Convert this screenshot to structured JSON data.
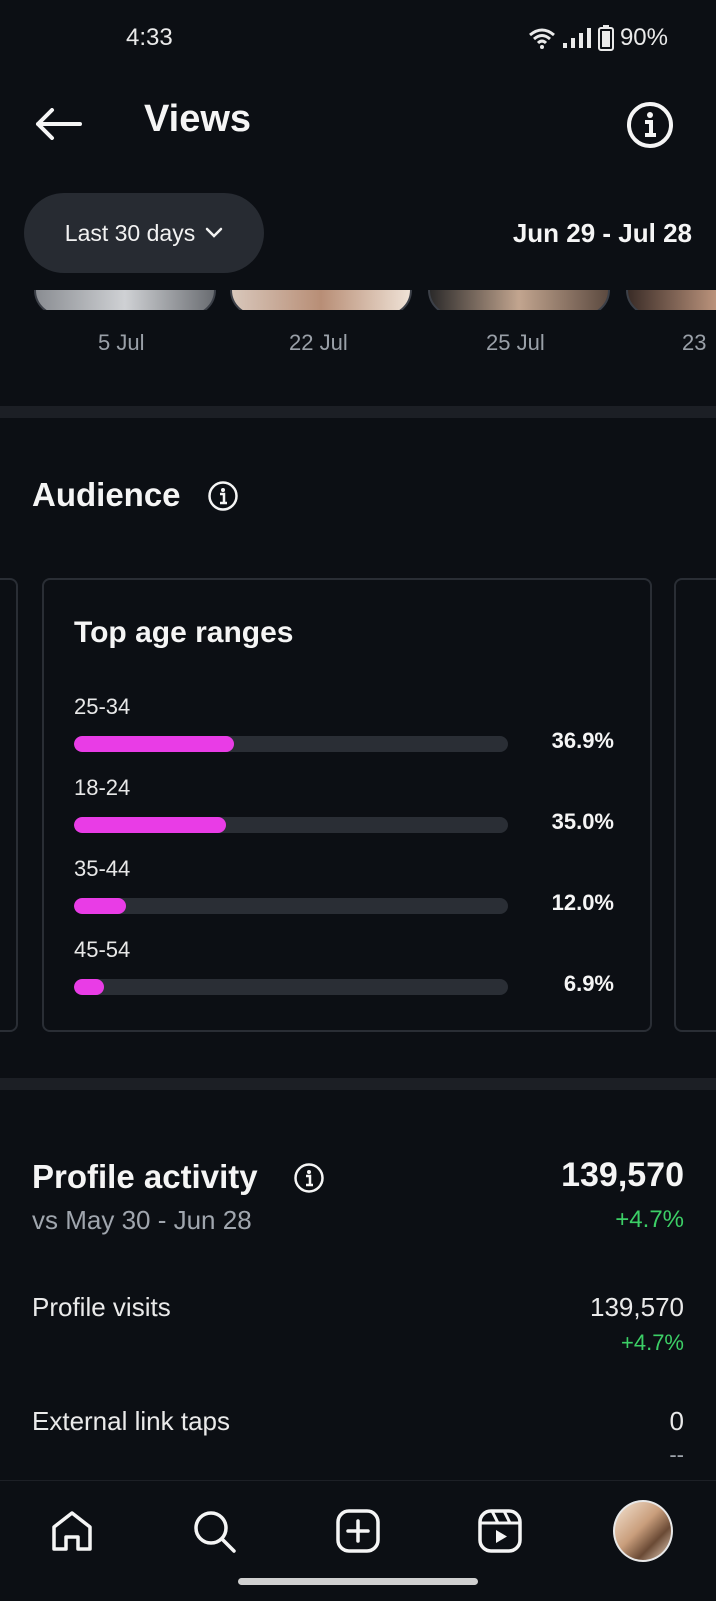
{
  "status": {
    "time": "4:33",
    "battery": "90%"
  },
  "header": {
    "title": "Views"
  },
  "filter": {
    "range_label": "Last 30 days",
    "date_range": "Jun 29 - Jul 28"
  },
  "thumbnails": {
    "captions": [
      "5 Jul",
      "22 Jul",
      "25 Jul",
      "23"
    ]
  },
  "audience": {
    "title": "Audience",
    "card_title": "Top age ranges",
    "ranges": [
      {
        "label": "25-34",
        "value": "36.9%",
        "fraction": 0.369
      },
      {
        "label": "18-24",
        "value": "35.0%",
        "fraction": 0.35
      },
      {
        "label": "35-44",
        "value": "12.0%",
        "fraction": 0.12
      },
      {
        "label": "45-54",
        "value": "6.9%",
        "fraction": 0.069
      }
    ]
  },
  "profile_activity": {
    "title": "Profile activity",
    "comparison": "vs May 30 - Jun 28",
    "total": "139,570",
    "total_change": "+4.7%",
    "rows": [
      {
        "label": "Profile visits",
        "value": "139,570",
        "change": "+4.7%"
      },
      {
        "label": "External link taps",
        "value": "0",
        "change": "--"
      }
    ]
  },
  "nav": {
    "icons": [
      "home-icon",
      "search-icon",
      "create-icon",
      "reels-icon",
      "profile-avatar"
    ]
  },
  "colors": {
    "bar_fill": "#e93ce6",
    "positive": "#3ccf66",
    "background": "#0c0f14"
  }
}
